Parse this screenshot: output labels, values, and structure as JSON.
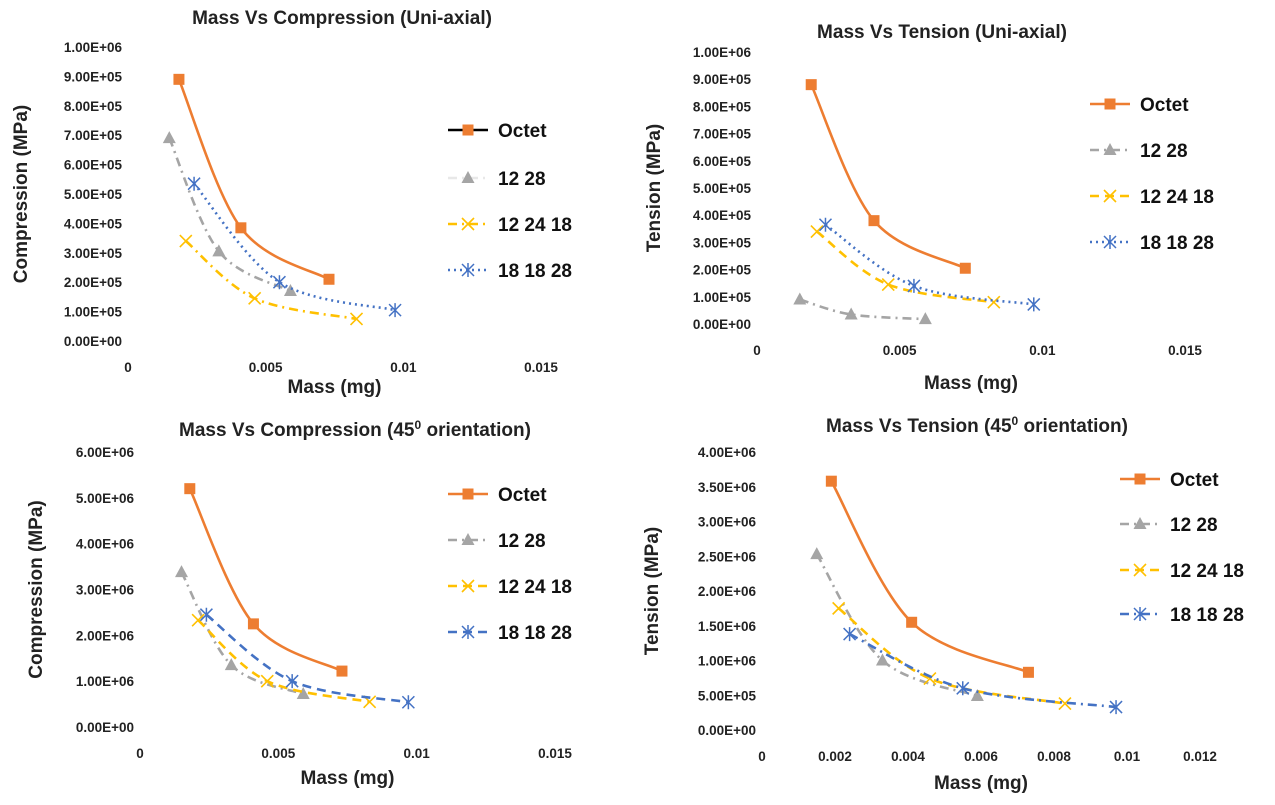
{
  "chart_data": [
    {
      "type": "scatter",
      "title": "Mass Vs Compression (Uni-axial)",
      "xlabel": "Mass (mg)",
      "ylabel": "Compression (MPa)",
      "xlim": [
        0,
        0.015
      ],
      "ylim": [
        0,
        1000000
      ],
      "x_ticks": [
        "0",
        "0.005",
        "0.01",
        "0.015"
      ],
      "y_ticks": [
        "0.00E+00",
        "1.00E+05",
        "2.00E+05",
        "3.00E+05",
        "4.00E+05",
        "5.00E+05",
        "6.00E+05",
        "7.00E+05",
        "8.00E+05",
        "9.00E+05",
        "1.00E+06"
      ],
      "legend_position": "right",
      "series": [
        {
          "name": "Octet",
          "color": "#ED7D31",
          "marker": "square",
          "dash": "solid",
          "legend_line_color": "#000000",
          "points": [
            [
              0.00185,
              890000
            ],
            [
              0.0041,
              385000
            ],
            [
              0.0073,
              210000
            ]
          ]
        },
        {
          "name": "12 28",
          "color": "#A5A5A5",
          "marker": "triangle",
          "dash": "dashdot",
          "legend_line_color": "#E8E8E8",
          "points": [
            [
              0.0015,
              690000
            ],
            [
              0.0033,
              305000
            ],
            [
              0.0059,
              170000
            ]
          ]
        },
        {
          "name": "12 24 18",
          "color": "#FFC000",
          "marker": "x",
          "dash": "dashdot",
          "points": [
            [
              0.0021,
              340000
            ],
            [
              0.0046,
              145000
            ],
            [
              0.0083,
              75000
            ]
          ]
        },
        {
          "name": "18 18 28",
          "color": "#4472C4",
          "marker": "star",
          "dash": "dot",
          "points": [
            [
              0.0024,
              535000
            ],
            [
              0.0055,
              200000
            ],
            [
              0.0097,
              105000
            ]
          ]
        }
      ]
    },
    {
      "type": "scatter",
      "title": "Mass Vs Tension (Uni-axial)",
      "xlabel": "Mass (mg)",
      "ylabel": "Tension (MPa)",
      "xlim": [
        0,
        0.015
      ],
      "ylim": [
        0,
        1000000
      ],
      "x_ticks": [
        "0",
        "0.005",
        "0.01",
        "0.015"
      ],
      "y_ticks": [
        "0.00E+00",
        "1.00E+05",
        "2.00E+05",
        "3.00E+05",
        "4.00E+05",
        "5.00E+05",
        "6.00E+05",
        "7.00E+05",
        "8.00E+05",
        "9.00E+05",
        "1.00E+06"
      ],
      "legend_position": "right",
      "series": [
        {
          "name": "Octet",
          "color": "#ED7D31",
          "marker": "square",
          "dash": "solid",
          "points": [
            [
              0.0019,
              880000
            ],
            [
              0.0041,
              380000
            ],
            [
              0.0073,
              205000
            ]
          ]
        },
        {
          "name": "12 28",
          "color": "#A5A5A5",
          "marker": "triangle",
          "dash": "dashdot",
          "points": [
            [
              0.0015,
              90000
            ],
            [
              0.0033,
              35000
            ],
            [
              0.0059,
              18000
            ]
          ]
        },
        {
          "name": "12 24 18",
          "color": "#FFC000",
          "marker": "x",
          "dash": "dash",
          "points": [
            [
              0.0021,
              340000
            ],
            [
              0.0046,
              145000
            ],
            [
              0.0083,
              80000
            ]
          ]
        },
        {
          "name": "18 18 28",
          "color": "#4472C4",
          "marker": "star",
          "dash": "dot",
          "points": [
            [
              0.0024,
              365000
            ],
            [
              0.0055,
              140000
            ],
            [
              0.0097,
              72000
            ]
          ]
        }
      ]
    },
    {
      "type": "scatter",
      "title": "Mass Vs Compression (45",
      "title_sup": "0",
      "title_tail": " orientation)",
      "xlabel": "Mass (mg)",
      "ylabel": "Compression (MPa)",
      "xlim": [
        0,
        0.015
      ],
      "ylim": [
        0,
        6000000
      ],
      "x_ticks": [
        "0",
        "0.005",
        "0.01",
        "0.015"
      ],
      "y_ticks": [
        "0.00E+00",
        "1.00E+06",
        "2.00E+06",
        "3.00E+06",
        "4.00E+06",
        "5.00E+06",
        "6.00E+06"
      ],
      "legend_position": "right",
      "series": [
        {
          "name": "Octet",
          "color": "#ED7D31",
          "marker": "square",
          "dash": "solid",
          "points": [
            [
              0.0018,
              5200000
            ],
            [
              0.0041,
              2250000
            ],
            [
              0.0073,
              1220000
            ]
          ]
        },
        {
          "name": "12 28",
          "color": "#A5A5A5",
          "marker": "triangle",
          "dash": "dashdot",
          "points": [
            [
              0.0015,
              3380000
            ],
            [
              0.0033,
              1350000
            ],
            [
              0.0059,
              720000
            ]
          ]
        },
        {
          "name": "12 24 18",
          "color": "#FFC000",
          "marker": "x",
          "dash": "dash",
          "points": [
            [
              0.0021,
              2330000
            ],
            [
              0.0046,
              1000000
            ],
            [
              0.0083,
              550000
            ]
          ]
        },
        {
          "name": "18 18 28",
          "color": "#4472C4",
          "marker": "star",
          "dash": "dash",
          "points": [
            [
              0.0024,
              2450000
            ],
            [
              0.0055,
              1000000
            ],
            [
              0.0097,
              540000
            ]
          ]
        }
      ]
    },
    {
      "type": "scatter",
      "title": "Mass Vs Tension (45",
      "title_sup": "0",
      "title_tail": " orientation)",
      "xlabel": "Mass (mg)",
      "ylabel": "Tension (MPa)",
      "xlim": [
        0,
        0.012
      ],
      "ylim": [
        0,
        4000000
      ],
      "x_ticks": [
        "0",
        "0.002",
        "0.004",
        "0.006",
        "0.008",
        "0.01",
        "0.012"
      ],
      "y_ticks": [
        "0.00E+00",
        "5.00E+05",
        "1.00E+06",
        "1.50E+06",
        "2.00E+06",
        "2.50E+06",
        "3.00E+06",
        "3.50E+06",
        "4.00E+06"
      ],
      "legend_position": "right",
      "series": [
        {
          "name": "Octet",
          "color": "#ED7D31",
          "marker": "square",
          "dash": "solid",
          "points": [
            [
              0.0019,
              3580000
            ],
            [
              0.0041,
              1550000
            ],
            [
              0.0073,
              830000
            ]
          ]
        },
        {
          "name": "12 28",
          "color": "#A5A5A5",
          "marker": "triangle",
          "dash": "dashdot",
          "points": [
            [
              0.0015,
              2530000
            ],
            [
              0.0033,
              1000000
            ],
            [
              0.0059,
              490000
            ]
          ]
        },
        {
          "name": "12 24 18",
          "color": "#FFC000",
          "marker": "x",
          "dash": "dash",
          "points": [
            [
              0.0021,
              1750000
            ],
            [
              0.0046,
              740000
            ],
            [
              0.0083,
              380000
            ]
          ]
        },
        {
          "name": "18 18 28",
          "color": "#4472C4",
          "marker": "star",
          "dash": "dashdot",
          "points": [
            [
              0.0024,
              1380000
            ],
            [
              0.0055,
              600000
            ],
            [
              0.0097,
              330000
            ]
          ]
        }
      ]
    }
  ]
}
